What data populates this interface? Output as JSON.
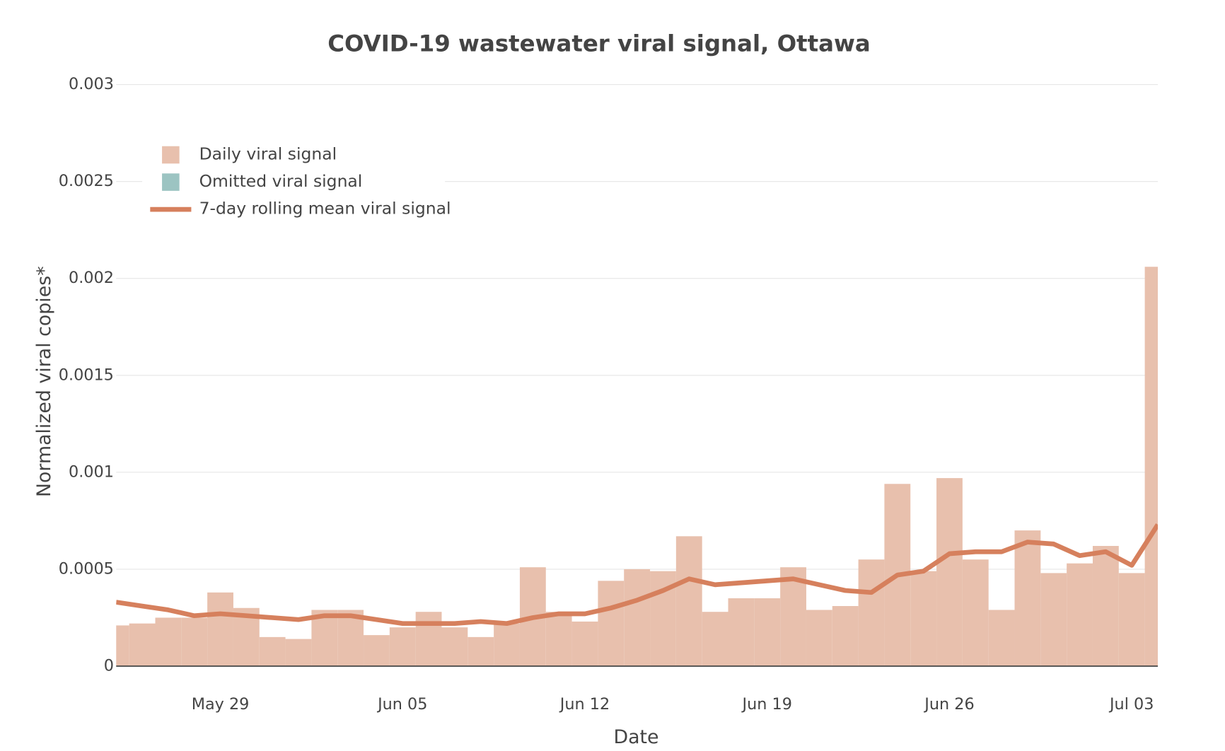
{
  "chart_data": {
    "type": "bar",
    "title": "COVID-19 wastewater viral signal, Ottawa",
    "x_label": "Date",
    "y_label": "Normalized viral copies*",
    "categories": [
      "May 25",
      "May 26",
      "May 27",
      "May 28",
      "May 29",
      "May 30",
      "May 31",
      "Jun 01",
      "Jun 02",
      "Jun 03",
      "Jun 04",
      "Jun 05",
      "Jun 06",
      "Jun 07",
      "Jun 08",
      "Jun 09",
      "Jun 10",
      "Jun 11",
      "Jun 12",
      "Jun 13",
      "Jun 14",
      "Jun 15",
      "Jun 16",
      "Jun 17",
      "Jun 18",
      "Jun 19",
      "Jun 20",
      "Jun 21",
      "Jun 22",
      "Jun 23",
      "Jun 24",
      "Jun 25",
      "Jun 26",
      "Jun 27",
      "Jun 28",
      "Jun 29",
      "Jun 30",
      "Jul 01",
      "Jul 02",
      "Jul 03",
      "Jul 04"
    ],
    "xticks": [
      "May 29",
      "Jun 05",
      "Jun 12",
      "Jun 19",
      "Jun 26",
      "Jul 03"
    ],
    "ylim": [
      0,
      0.003
    ],
    "yticks": [
      0,
      0.0005,
      0.001,
      0.0015,
      0.002,
      0.0025,
      0.003
    ],
    "grid": true,
    "legend": "upper-left",
    "series": [
      {
        "name": "Daily viral signal",
        "type": "bar",
        "color": "#e8c0ad",
        "values": [
          0.00021,
          0.00022,
          0.00025,
          0.00025,
          0.00038,
          0.0003,
          0.00015,
          0.00014,
          0.00029,
          0.00029,
          0.00016,
          0.0002,
          0.00028,
          0.0002,
          0.00015,
          0.00022,
          0.00051,
          0.00028,
          0.00023,
          0.00044,
          0.0005,
          0.00049,
          0.00067,
          0.00028,
          0.00035,
          0.00035,
          0.00051,
          0.00029,
          0.00031,
          0.00055,
          0.00094,
          0.00049,
          0.00097,
          0.00055,
          0.00029,
          0.0007,
          0.00048,
          0.00053,
          0.00062,
          0.00048,
          0.00206
        ]
      },
      {
        "name": "Omitted viral signal",
        "type": "bar",
        "color": "#9cc4c2",
        "values": [
          null,
          null,
          null,
          null,
          null,
          null,
          null,
          null,
          null,
          null,
          null,
          null,
          null,
          null,
          null,
          null,
          null,
          null,
          null,
          null,
          null,
          null,
          null,
          null,
          null,
          null,
          null,
          null,
          null,
          null,
          null,
          null,
          null,
          null,
          null,
          null,
          null,
          null,
          null,
          null,
          null
        ]
      },
      {
        "name": "7-day rolling mean viral signal",
        "type": "line",
        "color": "#d6805d",
        "values": [
          0.00033,
          0.00031,
          0.00029,
          0.00026,
          0.00027,
          0.00026,
          0.00025,
          0.00024,
          0.00026,
          0.00026,
          0.00024,
          0.00022,
          0.00022,
          0.00022,
          0.00023,
          0.00022,
          0.00025,
          0.00027,
          0.00027,
          0.0003,
          0.00034,
          0.00039,
          0.00045,
          0.00042,
          0.00043,
          0.00044,
          0.00045,
          0.00042,
          0.00039,
          0.00038,
          0.00047,
          0.00049,
          0.00058,
          0.00059,
          0.00059,
          0.00064,
          0.00063,
          0.00057,
          0.00059,
          0.00052,
          0.00073
        ]
      }
    ]
  }
}
